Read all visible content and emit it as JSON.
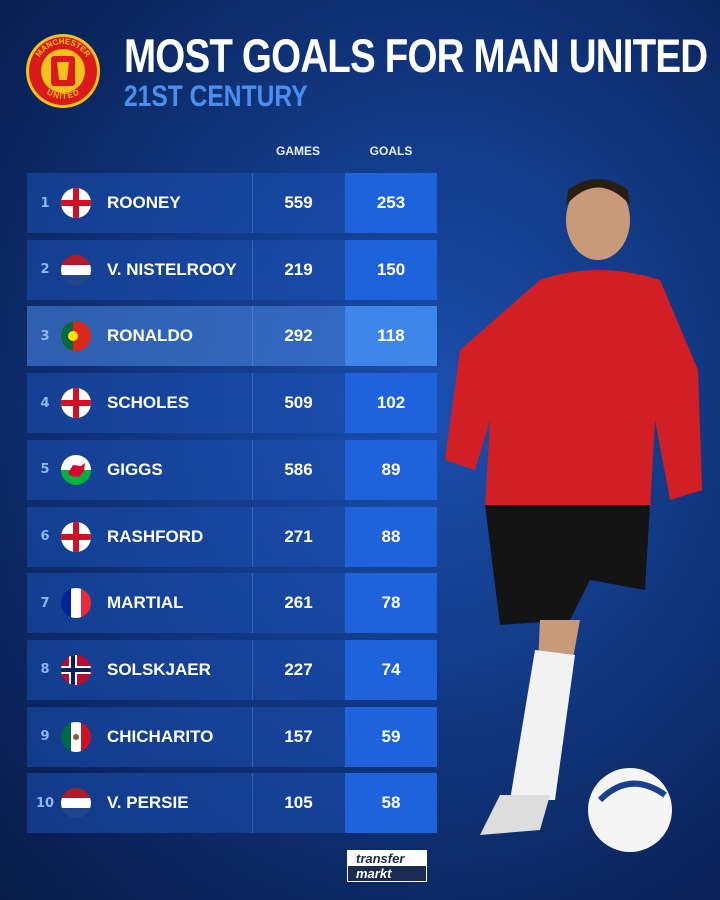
{
  "header": {
    "title": "MOST GOALS FOR MAN UNITED",
    "subtitle": "21ST CENTURY",
    "crest_text_top": "MANCHESTER",
    "crest_text_bottom": "UNITED"
  },
  "columns": {
    "games": "GAMES",
    "goals": "GOALS"
  },
  "footer": {
    "logo_line1": "transfer",
    "logo_line2": "markt"
  },
  "colors": {
    "goals_cell": "#1f63dc",
    "highlight_row": "#4682dc",
    "subtitle": "#4a8ff0"
  },
  "chart_data": {
    "type": "table",
    "title": "MOST GOALS FOR MAN UNITED",
    "subtitle": "21ST CENTURY",
    "columns": [
      "GAMES",
      "GOALS"
    ],
    "rows": [
      {
        "rank": "1",
        "flag": "england",
        "name": "ROONEY",
        "games": "559",
        "goals": "253"
      },
      {
        "rank": "2",
        "flag": "netherlands",
        "name": "V. NISTELROOY",
        "games": "219",
        "goals": "150"
      },
      {
        "rank": "3",
        "flag": "portugal",
        "name": "RONALDO",
        "games": "292",
        "goals": "118",
        "highlighted": true
      },
      {
        "rank": "4",
        "flag": "england",
        "name": "SCHOLES",
        "games": "509",
        "goals": "102"
      },
      {
        "rank": "5",
        "flag": "wales",
        "name": "GIGGS",
        "games": "586",
        "goals": "89"
      },
      {
        "rank": "6",
        "flag": "england",
        "name": "RASHFORD",
        "games": "271",
        "goals": "88"
      },
      {
        "rank": "7",
        "flag": "france",
        "name": "MARTIAL",
        "games": "261",
        "goals": "78"
      },
      {
        "rank": "8",
        "flag": "norway",
        "name": "SOLSKJAER",
        "games": "227",
        "goals": "74"
      },
      {
        "rank": "9",
        "flag": "mexico",
        "name": "CHICHARITO",
        "games": "157",
        "goals": "59"
      },
      {
        "rank": "10",
        "flag": "netherlands",
        "name": "V. PERSIE",
        "games": "105",
        "goals": "58"
      }
    ]
  }
}
